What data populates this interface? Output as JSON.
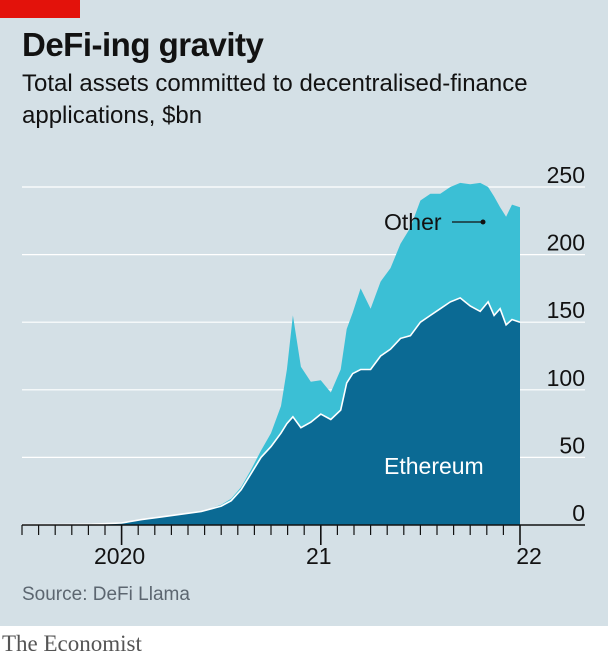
{
  "header": {
    "title": "DeFi-ing gravity",
    "subtitle": "Total assets committed to decentralised-finance applications, $bn"
  },
  "footer": {
    "source": "Source: DeFi Llama",
    "brand": "The Economist"
  },
  "colors": {
    "background": "#d4e0e6",
    "accent": "#e3120b",
    "ethereum": "#0b6a94",
    "other": "#3bbfd5",
    "grid": "#ffffff",
    "axis": "#121212"
  },
  "chart_data": {
    "type": "area",
    "title": "DeFi-ing gravity",
    "subtitle": "Total assets committed to decentralised-finance applications, $bn",
    "xlabel": "",
    "ylabel": "$bn",
    "ylim": [
      0,
      250
    ],
    "xlim": [
      2019.5,
      2022.0
    ],
    "y_ticks": [
      "0",
      "50",
      "100",
      "150",
      "200",
      "250"
    ],
    "y_tick_values": [
      0,
      50,
      100,
      150,
      200,
      250
    ],
    "x_tick_labels": [
      {
        "label": "2020",
        "value": 2020.0
      },
      {
        "label": "21",
        "value": 2021.0
      },
      {
        "label": "22",
        "value": 2022.0
      }
    ],
    "series": [
      {
        "name": "Ethereum",
        "x": [
          2019.5,
          2019.7,
          2019.85,
          2020.0,
          2020.1,
          2020.2,
          2020.3,
          2020.4,
          2020.45,
          2020.5,
          2020.55,
          2020.6,
          2020.65,
          2020.7,
          2020.75,
          2020.8,
          2020.83,
          2020.86,
          2020.9,
          2020.95,
          2021.0,
          2021.05,
          2021.1,
          2021.13,
          2021.16,
          2021.2,
          2021.25,
          2021.3,
          2021.35,
          2021.4,
          2021.45,
          2021.5,
          2021.55,
          2021.6,
          2021.65,
          2021.7,
          2021.75,
          2021.8,
          2021.84,
          2021.87,
          2021.9,
          2021.93,
          2021.96,
          2022.0
        ],
        "values": [
          0.2,
          0.3,
          0.6,
          1.5,
          4,
          6,
          8,
          10,
          12,
          14,
          18,
          26,
          38,
          50,
          58,
          68,
          75,
          80,
          72,
          76,
          82,
          78,
          85,
          105,
          112,
          115,
          115,
          125,
          130,
          138,
          140,
          150,
          155,
          160,
          165,
          168,
          162,
          158,
          165,
          155,
          160,
          148,
          152,
          150
        ]
      },
      {
        "name": "Other",
        "x": [
          2019.5,
          2019.7,
          2019.85,
          2020.0,
          2020.1,
          2020.2,
          2020.3,
          2020.4,
          2020.45,
          2020.5,
          2020.55,
          2020.6,
          2020.65,
          2020.7,
          2020.75,
          2020.8,
          2020.83,
          2020.86,
          2020.9,
          2020.95,
          2021.0,
          2021.05,
          2021.1,
          2021.13,
          2021.16,
          2021.2,
          2021.25,
          2021.3,
          2021.35,
          2021.4,
          2021.45,
          2021.5,
          2021.55,
          2021.6,
          2021.65,
          2021.7,
          2021.75,
          2021.8,
          2021.84,
          2021.87,
          2021.9,
          2021.93,
          2021.96,
          2022.0
        ],
        "values": [
          0.0,
          0.0,
          0.0,
          0.0,
          0.0,
          0.0,
          0.0,
          0.0,
          0.5,
          1,
          1.5,
          2,
          3,
          5,
          10,
          20,
          40,
          75,
          45,
          30,
          25,
          20,
          30,
          40,
          45,
          60,
          45,
          55,
          60,
          70,
          80,
          90,
          90,
          85,
          85,
          85,
          90,
          95,
          85,
          88,
          75,
          80,
          85,
          85
        ]
      }
    ],
    "annotations": [
      {
        "text": "Other",
        "series": "Other"
      },
      {
        "text": "Ethereum",
        "series": "Ethereum"
      }
    ]
  }
}
